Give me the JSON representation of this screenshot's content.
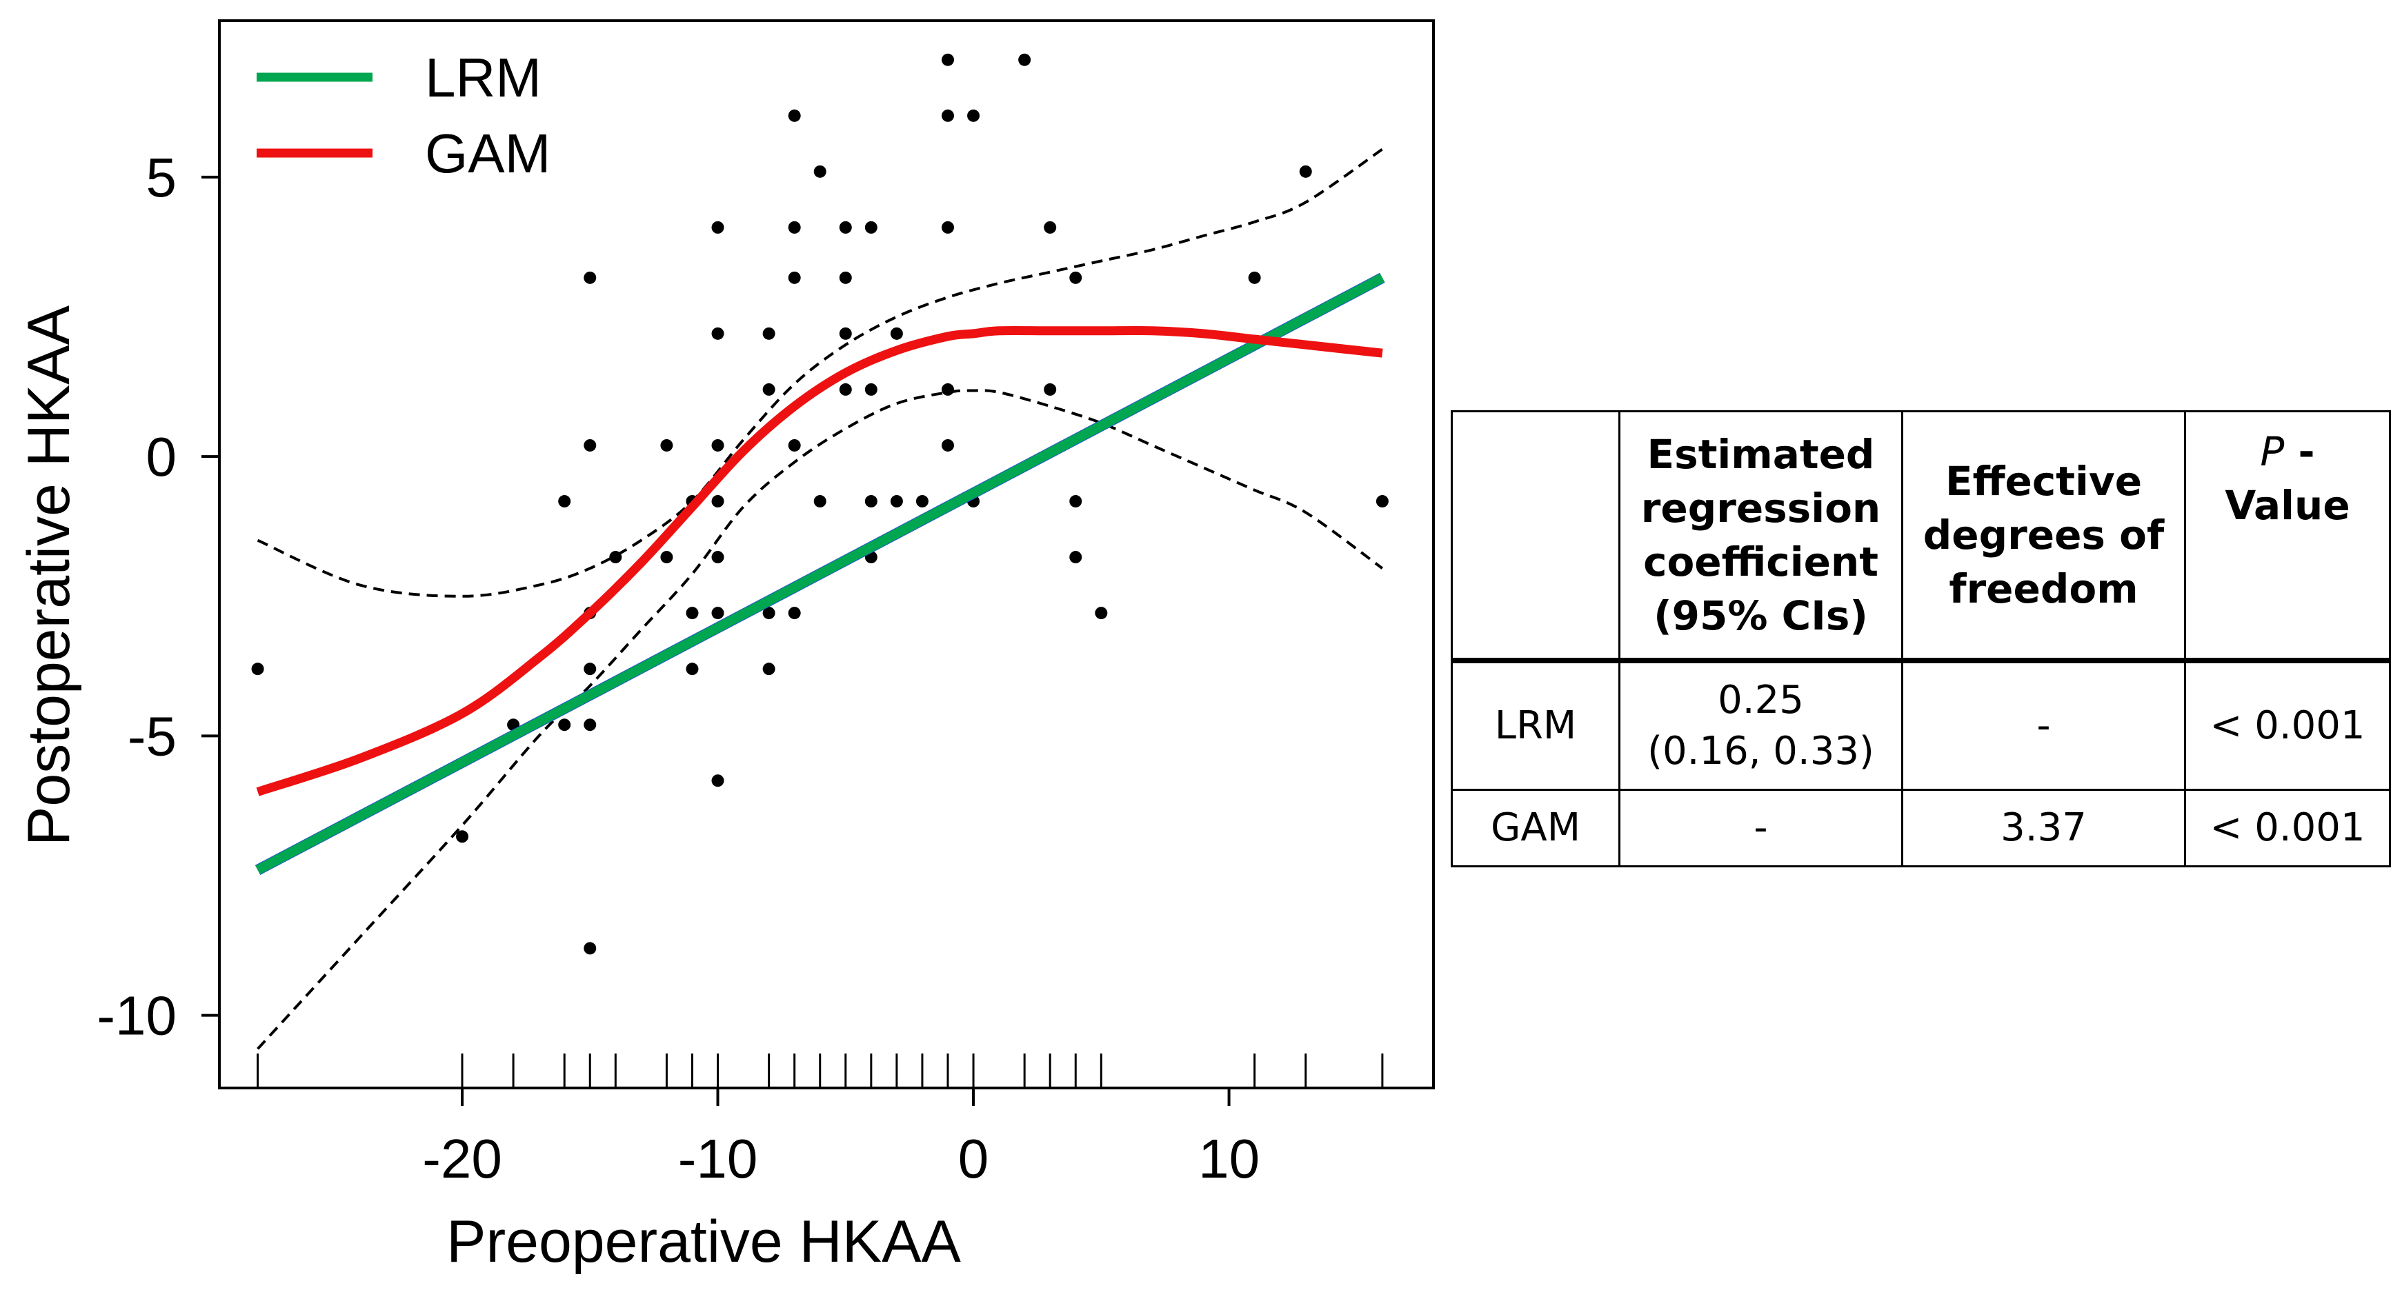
{
  "chart_data": {
    "type": "scatter",
    "title": "",
    "xlabel": "Preoperative HKAA",
    "ylabel": "Postoperative HKAA",
    "xlim": [
      -29.5,
      18
    ],
    "ylim": [
      -11.3,
      7.8
    ],
    "x_ticks": [
      -20,
      -10,
      0,
      10
    ],
    "x_tick_labels": [
      "-20",
      "-10",
      "0",
      "10"
    ],
    "y_ticks": [
      -10,
      -5,
      0,
      5
    ],
    "y_tick_labels": [
      "-10",
      "-5",
      "0",
      "5"
    ],
    "grid": false,
    "legend": {
      "placement": "top-left",
      "entries": [
        {
          "label": "LRM",
          "color": "#00a650"
        },
        {
          "label": "GAM",
          "color": "#ee1111"
        }
      ]
    },
    "points": [
      [
        -28,
        -3.8
      ],
      [
        -20,
        -6.8
      ],
      [
        -18,
        -4.8
      ],
      [
        -16,
        -0.8
      ],
      [
        -16,
        -4.8
      ],
      [
        -15,
        3.2
      ],
      [
        -15,
        0.2
      ],
      [
        -15,
        -2.8
      ],
      [
        -15,
        -3.8
      ],
      [
        -15,
        -4.8
      ],
      [
        -15,
        -8.8
      ],
      [
        -14,
        -1.8
      ],
      [
        -12,
        0.2
      ],
      [
        -12,
        -1.8
      ],
      [
        -11,
        -0.8
      ],
      [
        -11,
        -2.8
      ],
      [
        -11,
        -3.8
      ],
      [
        -10,
        4.1
      ],
      [
        -10,
        2.2
      ],
      [
        -10,
        0.2
      ],
      [
        -10,
        -0.8
      ],
      [
        -10,
        -1.8
      ],
      [
        -10,
        -2.8
      ],
      [
        -10,
        -5.8
      ],
      [
        -8,
        2.2
      ],
      [
        -8,
        1.2
      ],
      [
        -8,
        -2.8
      ],
      [
        -8,
        -3.8
      ],
      [
        -7,
        6.1
      ],
      [
        -7,
        4.1
      ],
      [
        -7,
        3.2
      ],
      [
        -7,
        0.2
      ],
      [
        -7,
        -2.8
      ],
      [
        -6,
        5.1
      ],
      [
        -6,
        -0.8
      ],
      [
        -5,
        4.1
      ],
      [
        -5,
        3.2
      ],
      [
        -5,
        2.2
      ],
      [
        -5,
        1.2
      ],
      [
        -4,
        4.1
      ],
      [
        -4,
        1.2
      ],
      [
        -4,
        -0.8
      ],
      [
        -4,
        -1.8
      ],
      [
        -3,
        2.2
      ],
      [
        -3,
        -0.8
      ],
      [
        -2,
        -0.8
      ],
      [
        -1,
        7.1
      ],
      [
        -1,
        6.1
      ],
      [
        -1,
        4.1
      ],
      [
        -1,
        1.2
      ],
      [
        -1,
        0.2
      ],
      [
        0,
        6.1
      ],
      [
        0,
        -0.8
      ],
      [
        2,
        7.1
      ],
      [
        3,
        4.1
      ],
      [
        3,
        1.2
      ],
      [
        4,
        3.2
      ],
      [
        4,
        -0.8
      ],
      [
        4,
        -1.8
      ],
      [
        5,
        -2.8
      ],
      [
        11,
        3.2
      ],
      [
        13,
        5.1
      ],
      [
        16,
        -0.8
      ]
    ],
    "series": [
      {
        "name": "LRM",
        "style": "line",
        "color": "#00a650",
        "x": [
          -28,
          16
        ],
        "y": [
          -7.4,
          3.2
        ]
      },
      {
        "name": "GAM",
        "style": "line",
        "color": "#ee1111",
        "x": [
          -28,
          -24,
          -20,
          -17,
          -15,
          -13,
          -11,
          -9,
          -7,
          -5,
          -3,
          -1,
          0,
          1,
          3,
          5,
          7,
          9,
          11,
          13,
          16
        ],
        "y": [
          -6.0,
          -5.4,
          -4.6,
          -3.6,
          -2.8,
          -1.9,
          -0.9,
          0.1,
          0.9,
          1.5,
          1.9,
          2.15,
          2.2,
          2.25,
          2.25,
          2.25,
          2.25,
          2.2,
          2.1,
          2.0,
          1.85
        ]
      },
      {
        "name": "GAM upper 95% band",
        "style": "dashed",
        "color": "#000000",
        "x": [
          -28,
          -24,
          -20,
          -17,
          -15,
          -13,
          -11,
          -9,
          -7,
          -5,
          -3,
          -1,
          1,
          3,
          5,
          7,
          9,
          11,
          13,
          16
        ],
        "y": [
          -1.5,
          -2.3,
          -2.5,
          -2.3,
          -2.0,
          -1.5,
          -0.8,
          0.3,
          1.3,
          2.0,
          2.5,
          2.85,
          3.1,
          3.3,
          3.5,
          3.7,
          3.95,
          4.2,
          4.55,
          5.5
        ]
      },
      {
        "name": "GAM lower 95% band",
        "style": "dashed",
        "color": "#000000",
        "x": [
          -28,
          -24,
          -20,
          -17,
          -15,
          -13,
          -11,
          -9,
          -7,
          -5,
          -3,
          -1,
          0,
          1,
          3,
          5,
          7,
          9,
          11,
          13,
          16
        ],
        "y": [
          -10.6,
          -8.6,
          -6.6,
          -5.0,
          -4.1,
          -3.1,
          -2.1,
          -0.9,
          -0.1,
          0.5,
          0.95,
          1.15,
          1.18,
          1.15,
          0.9,
          0.6,
          0.2,
          -0.2,
          -0.6,
          -1.0,
          -2.0
        ]
      }
    ],
    "rug_x": [
      -28,
      -20,
      -18,
      -16,
      -15,
      -14,
      -12,
      -11,
      -10,
      -8,
      -7,
      -6,
      -5,
      -4,
      -3,
      -2,
      -1,
      0,
      2,
      3,
      4,
      5,
      11,
      13,
      16
    ]
  },
  "table": {
    "headers": {
      "blank": "",
      "estimated": [
        "Estimated",
        "regression",
        "coefficient",
        "(95% CIs)"
      ],
      "effective": [
        "Effective",
        "degrees of",
        "freedom"
      ],
      "p_symbol": "P",
      "p_dash": " -",
      "p_value": "Value"
    },
    "rows": [
      {
        "model": "LRM",
        "estimate": "0.25",
        "ci": "(0.16, 0.33)",
        "edf": "-",
        "p": "< 0.001"
      },
      {
        "model": "GAM",
        "estimate": "-",
        "edf": "3.37",
        "p": "< 0.001"
      }
    ]
  }
}
